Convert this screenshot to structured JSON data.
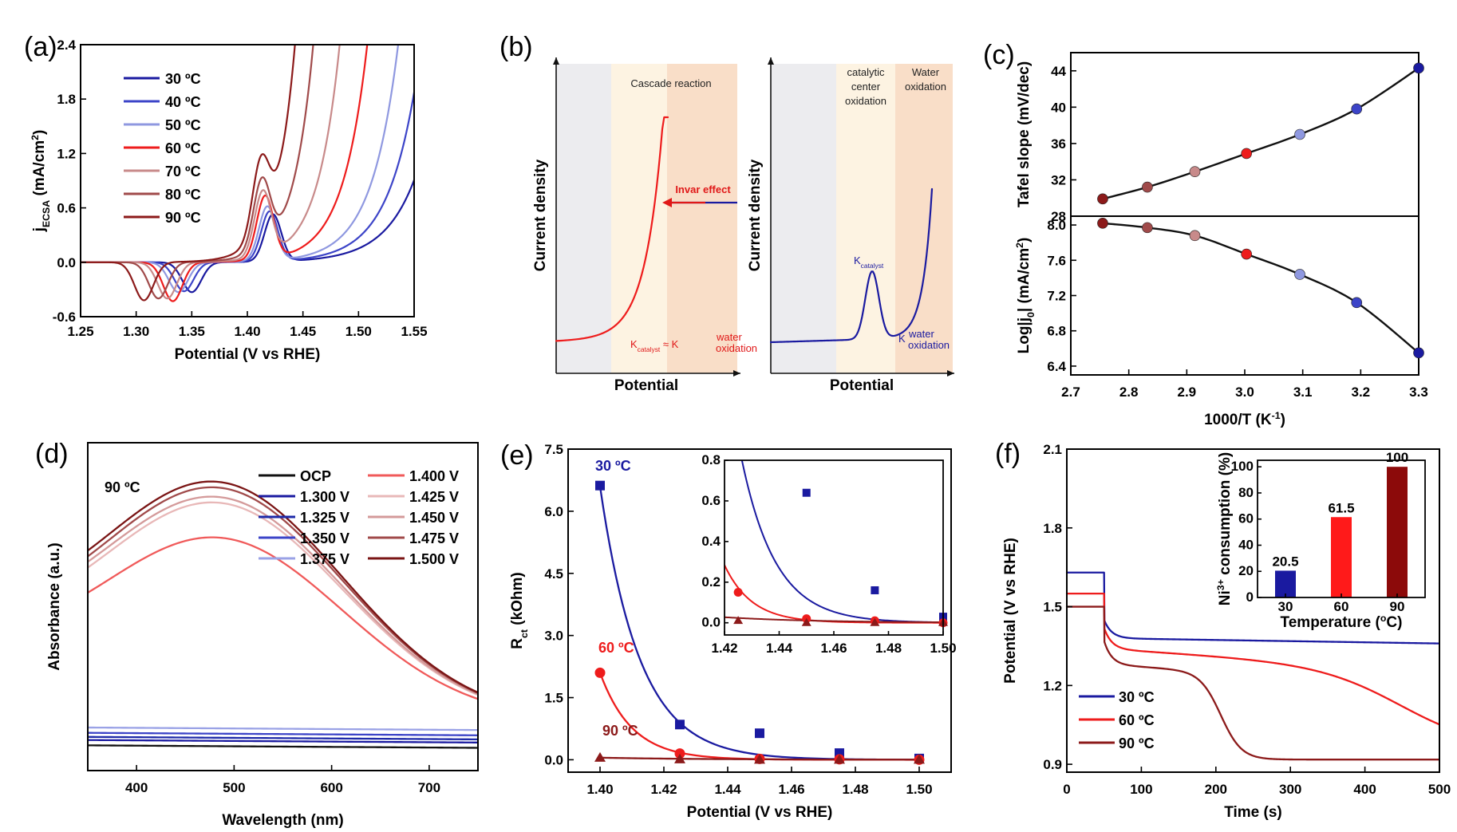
{
  "chart_data": [
    {
      "panel": "(a)",
      "type": "line",
      "xlabel": "Potential (V vs RHE)",
      "ylabel": "j_ECSA (mA/cm^2)",
      "ylabel_main": "j",
      "ylabel_sub": "ECSA",
      "ylabel_unit": "(mA/cm",
      "ylabel_sup": "2",
      "ylabel_close": ")",
      "xlim": [
        1.25,
        1.55
      ],
      "ylim": [
        -0.6,
        2.4
      ],
      "xticks": [
        "1.25",
        "1.30",
        "1.35",
        "1.40",
        "1.45",
        "1.50",
        "1.55"
      ],
      "yticks": [
        "-0.6",
        "0.0",
        "0.6",
        "1.2",
        "1.8",
        "2.4"
      ],
      "series": [
        {
          "name": "30 ºC",
          "color": "#1a1aa0",
          "red_peak": 1.35,
          "red_depth": 0.33,
          "ox_peak": 1.423,
          "ox_height": 0.52,
          "onset": 1.482,
          "rise": 0.028
        },
        {
          "name": "40 ºC",
          "color": "#3c44c8",
          "red_peak": 1.343,
          "red_depth": 0.32,
          "ox_peak": 1.42,
          "ox_height": 0.55,
          "onset": 1.468,
          "rise": 0.026
        },
        {
          "name": "50 ºC",
          "color": "#8f98e0",
          "red_peak": 1.338,
          "red_depth": 0.33,
          "ox_peak": 1.418,
          "ox_height": 0.6,
          "onset": 1.454,
          "rise": 0.024
        },
        {
          "name": "60 ºC",
          "color": "#ee1c1c",
          "red_peak": 1.333,
          "red_depth": 0.43,
          "ox_peak": 1.416,
          "ox_height": 0.7,
          "onset": 1.433,
          "rise": 0.022
        },
        {
          "name": "70 ºC",
          "color": "#c88a8a",
          "red_peak": 1.328,
          "red_depth": 0.4,
          "ox_peak": 1.414,
          "ox_height": 0.72,
          "onset": 1.415,
          "rise": 0.02
        },
        {
          "name": "80 ºC",
          "color": "#a04a4a",
          "red_peak": 1.32,
          "red_depth": 0.4,
          "ox_peak": 1.413,
          "ox_height": 0.75,
          "onset": 1.398,
          "rise": 0.018
        },
        {
          "name": "90 ºC",
          "color": "#8c1a1a",
          "red_peak": 1.307,
          "red_depth": 0.42,
          "ox_peak": 1.412,
          "ox_height": 0.78,
          "onset": 1.385,
          "rise": 0.017
        }
      ]
    },
    {
      "panel": "(b)",
      "type": "schematic",
      "left": {
        "xlabel": "Potential",
        "ylabel": "Current density",
        "region_label": "Cascade reaction",
        "arrow_label": "Invar effect",
        "k1": "K",
        "k1_sub": "catalyst",
        "approx": "≈",
        "k2": "K",
        "k2_sup": "water",
        "k2_sub": "oxidation"
      },
      "right": {
        "xlabel": "Potential",
        "ylabel": "Current density",
        "region1_lines": [
          "catalytic",
          "center",
          "oxidation"
        ],
        "region2_lines": [
          "Water",
          "oxidation"
        ],
        "k1": "K",
        "k1_sub": "catalyst",
        "k2": "K",
        "k2_sup": "water",
        "k2_sub": "oxidation"
      }
    },
    {
      "panel": "(c)",
      "type": "scatter",
      "xlabel": "1000/T (K-1)",
      "xlabel_main": "1000/T (K",
      "xlabel_sup": "-1",
      "xlabel_close": ")",
      "xlim": [
        2.7,
        3.3
      ],
      "xticks": [
        "2.7",
        "2.8",
        "2.9",
        "3.0",
        "3.1",
        "3.2",
        "3.3"
      ],
      "x": [
        2.755,
        2.832,
        2.914,
        3.003,
        3.095,
        3.193,
        3.3
      ],
      "point_colors": [
        "#8c1a1a",
        "#a04a4a",
        "#c88a8a",
        "#ee1c1c",
        "#8f98e0",
        "#3c44c8",
        "#1a1aa0"
      ],
      "top": {
        "ylabel": "Tafel slope (mV/dec)",
        "ylim": [
          28,
          46
        ],
        "yticks": [
          "28",
          "32",
          "36",
          "40",
          "44"
        ],
        "values": [
          29.9,
          31.2,
          32.9,
          34.9,
          37.0,
          39.8,
          44.3
        ]
      },
      "bottom": {
        "ylabel": "Log|j0| (mA/cm2)",
        "ylabel_a": "Log",
        "ylabel_b": "j",
        "ylabel_sub": "0",
        "ylabel_c": "(mA/cm",
        "ylabel_sup": "2",
        "ylabel_close": ")",
        "ylim": [
          6.3,
          8.1
        ],
        "yticks": [
          "6.4",
          "6.8",
          "7.2",
          "7.6",
          "8.0"
        ],
        "values": [
          8.02,
          7.97,
          7.88,
          7.67,
          7.44,
          7.12,
          6.55
        ]
      }
    },
    {
      "panel": "(d)",
      "type": "line",
      "annotation": "90 ºC",
      "xlabel": "Wavelength (nm)",
      "ylabel": "Absorbance (a.u.)",
      "xlim": [
        350,
        750
      ],
      "ylim": [
        0,
        1
      ],
      "xticks": [
        "400",
        "500",
        "600",
        "700"
      ],
      "series": [
        {
          "name": "OCP",
          "color": "#111111",
          "base": 0.045,
          "amp": 0.0,
          "edge": 0.0
        },
        {
          "name": "1.300 V",
          "color": "#1a1aa0",
          "base": 0.062,
          "amp": 0.0,
          "edge": 0.0
        },
        {
          "name": "1.325 V",
          "color": "#1e2aa8",
          "base": 0.072,
          "amp": 0.0,
          "edge": 0.0
        },
        {
          "name": "1.350 V",
          "color": "#3c44c8",
          "base": 0.085,
          "amp": 0.0,
          "edge": 0.0
        },
        {
          "name": "1.375 V",
          "color": "#9aa2e6",
          "base": 0.102,
          "amp": 0.0,
          "edge": 0.0
        },
        {
          "name": "1.400 V",
          "color": "#f05a5a",
          "base": 0.125,
          "amp": 0.555,
          "edge": 0.09
        },
        {
          "name": "1.425 V",
          "color": "#e8b8b8",
          "base": 0.125,
          "amp": 0.66,
          "edge": 0.11
        },
        {
          "name": "1.450 V",
          "color": "#d49a9a",
          "base": 0.125,
          "amp": 0.675,
          "edge": 0.12
        },
        {
          "name": "1.475 V",
          "color": "#a04a4a",
          "base": 0.125,
          "amp": 0.705,
          "edge": 0.12
        },
        {
          "name": "1.500 V",
          "color": "#7a1414",
          "base": 0.125,
          "amp": 0.72,
          "edge": 0.13
        }
      ]
    },
    {
      "panel": "(e)",
      "type": "scatter",
      "xlabel": "Potential (V vs RHE)",
      "ylabel": "Rct (kOhm)",
      "ylabel_main": "R",
      "ylabel_sub": "ct",
      "ylabel_unit": "(kOhm)",
      "xlim": [
        1.39,
        1.51
      ],
      "ylim": [
        -0.3,
        7.5
      ],
      "xticks": [
        "1.40",
        "1.42",
        "1.44",
        "1.46",
        "1.48",
        "1.50"
      ],
      "yticks": [
        "0.0",
        "1.5",
        "3.0",
        "4.5",
        "6.0",
        "7.5"
      ],
      "x": [
        1.4,
        1.425,
        1.45,
        1.475,
        1.5
      ],
      "series": [
        {
          "name": "30 ºC",
          "color": "#1a1aa0",
          "marker": "square",
          "values": [
            6.62,
            0.85,
            0.64,
            0.16,
            0.03
          ],
          "fit_a": 6.6,
          "fit_k": 80
        },
        {
          "name": "60 ºC",
          "color": "#ee1c1c",
          "marker": "circle",
          "values": [
            2.1,
            0.15,
            0.02,
            0.01,
            0.0
          ],
          "fit_a": 2.1,
          "fit_k": 100
        },
        {
          "name": "90 ºC",
          "color": "#8c1a1a",
          "marker": "triangle",
          "values": [
            0.05,
            0.01,
            0.0,
            0.0,
            0.0
          ],
          "fit_a": 0.05,
          "fit_k": 30
        }
      ],
      "inset": {
        "xlim": [
          1.42,
          1.5
        ],
        "ylim": [
          -0.06,
          0.8
        ],
        "xticks": [
          "1.42",
          "1.44",
          "1.46",
          "1.48",
          "1.50"
        ],
        "yticks": [
          "0.0",
          "0.2",
          "0.4",
          "0.6",
          "0.8"
        ]
      }
    },
    {
      "panel": "(f)",
      "type": "line",
      "xlabel": "Time (s)",
      "ylabel": "Potential (V vs RHE)",
      "xlim": [
        0,
        500
      ],
      "ylim": [
        0.87,
        2.1
      ],
      "xticks": [
        "0",
        "100",
        "200",
        "300",
        "400",
        "500"
      ],
      "yticks": [
        "0.9",
        "1.2",
        "1.5",
        "1.8",
        "2.1"
      ],
      "series": [
        {
          "name": "30 ºC",
          "color": "#1a1aa0",
          "v0": 1.63,
          "drop": 1.45,
          "plateau": 1.38,
          "final": 1.36,
          "t_mid": 0,
          "width": 1
        },
        {
          "name": "60 ºC",
          "color": "#ee1c1c",
          "v0": 1.55,
          "drop": 1.42,
          "plateau": 1.34,
          "final": 0.96,
          "t_mid": 455,
          "width": 55
        },
        {
          "name": "90 ºC",
          "color": "#8c1a1a",
          "v0": 1.5,
          "drop": 1.37,
          "plateau": 1.28,
          "final": 0.918,
          "t_mid": 207,
          "width": 14
        }
      ],
      "inset": {
        "type": "bar",
        "xlabel": "Temperature (ºC)",
        "xlabel_main": "Temperature (",
        "xlabel_sup": "o",
        "xlabel_close": "C)",
        "ylabel": "Ni3+ consumption (%)",
        "ylabel_a": "Ni",
        "ylabel_sup": "3+",
        "ylabel_b": " consumption (%)",
        "ylim": [
          0,
          105
        ],
        "yticks": [
          "0",
          "20",
          "40",
          "60",
          "80",
          "100"
        ],
        "categories": [
          "30",
          "60",
          "90"
        ],
        "values": [
          20.5,
          61.5,
          100
        ],
        "labels": [
          "20.5",
          "61.5",
          "100"
        ],
        "colors": [
          "#1a1aa0",
          "#ff1a1a",
          "#8c0a0a"
        ]
      }
    }
  ]
}
